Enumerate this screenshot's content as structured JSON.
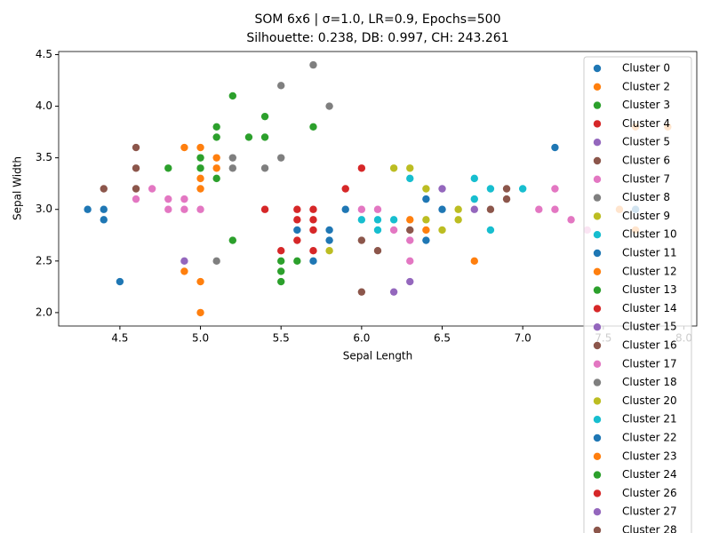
{
  "chart_data": {
    "type": "scatter",
    "title": "SOM 6x6 | σ=1.0, LR=0.9, Epochs=500",
    "subtitle": "Silhouette: 0.238, DB: 0.997, CH: 243.261",
    "x_label": "Sepal Length",
    "y_label": "Sepal Width",
    "xlim": [
      4.12,
      8.08
    ],
    "ylim": [
      1.87,
      4.53
    ],
    "xticks": [
      4.5,
      {
        "value": 5,
        "label": "5.0"
      },
      5.5,
      {
        "value": 6,
        "label": "6.0"
      },
      6.5,
      {
        "value": 7,
        "label": "7.0"
      },
      7.5,
      {
        "value": 8,
        "label": "8.0"
      }
    ],
    "yticks": [
      {
        "value": 2,
        "label": "2.0"
      },
      2.5,
      {
        "value": 3,
        "label": "3.0"
      },
      3.5,
      {
        "value": 4,
        "label": "4.0"
      },
      4.5
    ],
    "legend": "upper right",
    "series": [
      {
        "name": "Cluster 0",
        "color": "#1f77b4",
        "x": [
          4.3,
          4.4,
          4.4
        ],
        "y": [
          3.0,
          3.0,
          2.9
        ]
      },
      {
        "name": "Cluster 2",
        "color": "#ff7f0e",
        "x": [
          4.9,
          5.0,
          5.0,
          5.0,
          5.1,
          5.1
        ],
        "y": [
          3.6,
          3.6,
          3.3,
          3.2,
          3.5,
          3.4
        ]
      },
      {
        "name": "Cluster 3",
        "color": "#2ca02c",
        "x": [
          4.8,
          5.0,
          5.0,
          5.1,
          5.1,
          5.1,
          5.2,
          5.3,
          5.4,
          5.4,
          5.7
        ],
        "y": [
          3.4,
          3.5,
          3.4,
          3.8,
          3.7,
          3.3,
          4.1,
          3.7,
          3.9,
          3.7,
          3.8
        ]
      },
      {
        "name": "Cluster 4",
        "color": "#d62728",
        "x": [
          5.4,
          5.9,
          6.0
        ],
        "y": [
          3.0,
          3.2,
          3.4
        ]
      },
      {
        "name": "Cluster 5",
        "color": "#9467bd",
        "x": [
          4.9
        ],
        "y": [
          2.5
        ]
      },
      {
        "name": "Cluster 6",
        "color": "#8c564b",
        "x": [
          4.4,
          4.6,
          4.6,
          4.6
        ],
        "y": [
          3.2,
          3.6,
          3.4,
          3.2
        ]
      },
      {
        "name": "Cluster 7",
        "color": "#e377c2",
        "x": [
          4.6,
          4.7,
          4.8,
          4.8,
          4.9,
          4.9,
          5.0
        ],
        "y": [
          3.1,
          3.2,
          3.1,
          3.0,
          3.1,
          3.0,
          3.0
        ]
      },
      {
        "name": "Cluster 8",
        "color": "#7f7f7f",
        "x": [
          5.1,
          5.2,
          5.2,
          5.4
        ],
        "y": [
          2.5,
          3.5,
          3.4,
          3.4
        ]
      },
      {
        "name": "Cluster 9",
        "color": "#bcbd22",
        "x": [
          5.8
        ],
        "y": [
          2.6
        ]
      },
      {
        "name": "Cluster 10",
        "color": "#17becf",
        "x": [
          6.0,
          6.1,
          6.1,
          6.2
        ],
        "y": [
          2.9,
          2.9,
          2.8,
          2.9
        ]
      },
      {
        "name": "Cluster 11",
        "color": "#1f77b4",
        "x": [
          4.5,
          5.6,
          5.7,
          5.8,
          5.8
        ],
        "y": [
          2.3,
          2.8,
          2.5,
          2.7,
          2.8
        ]
      },
      {
        "name": "Cluster 12",
        "color": "#ff7f0e",
        "x": [
          4.9,
          5.0,
          5.0
        ],
        "y": [
          2.4,
          2.3,
          2.0
        ]
      },
      {
        "name": "Cluster 13",
        "color": "#2ca02c",
        "x": [
          5.2
        ],
        "y": [
          2.7
        ]
      },
      {
        "name": "Cluster 14",
        "color": "#d62728",
        "x": [
          5.5,
          5.6,
          5.6,
          5.6
        ],
        "y": [
          2.6,
          3.0,
          2.9,
          2.7
        ]
      },
      {
        "name": "Cluster 15",
        "color": "#9467bd",
        "x": [
          6.2,
          6.3
        ],
        "y": [
          2.2,
          2.3
        ]
      },
      {
        "name": "Cluster 16",
        "color": "#8c564b",
        "x": [
          6.0,
          6.0,
          6.1,
          6.3
        ],
        "y": [
          2.7,
          2.2,
          2.6,
          2.8
        ]
      },
      {
        "name": "Cluster 17",
        "color": "#e377c2",
        "x": [
          6.0,
          6.1,
          6.2,
          6.3,
          6.3,
          7.1,
          7.2,
          7.2,
          7.3,
          7.4
        ],
        "y": [
          3.0,
          3.0,
          2.8,
          2.7,
          2.5,
          3.0,
          3.2,
          3.0,
          2.9,
          2.8
        ]
      },
      {
        "name": "Cluster 18",
        "color": "#7f7f7f",
        "x": [
          5.5,
          5.5,
          5.7,
          5.8
        ],
        "y": [
          4.2,
          3.5,
          4.4,
          4.0
        ]
      },
      {
        "name": "Cluster 20",
        "color": "#bcbd22",
        "x": [
          6.2,
          6.3,
          6.4,
          6.4,
          6.5,
          6.6,
          6.6
        ],
        "y": [
          3.4,
          3.4,
          3.2,
          2.9,
          2.8,
          3.0,
          2.9
        ]
      },
      {
        "name": "Cluster 21",
        "color": "#17becf",
        "x": [
          6.3,
          6.7,
          6.7,
          6.8,
          6.8,
          7.0
        ],
        "y": [
          3.3,
          3.3,
          3.1,
          3.2,
          2.8,
          3.2
        ]
      },
      {
        "name": "Cluster 22",
        "color": "#1f77b4",
        "x": [
          5.9,
          6.4,
          6.4,
          6.5,
          7.2,
          7.7
        ],
        "y": [
          3.0,
          3.1,
          2.7,
          3.0,
          3.6,
          3.0
        ]
      },
      {
        "name": "Cluster 23",
        "color": "#ff7f0e",
        "x": [
          6.3,
          6.4,
          6.7,
          7.6,
          7.7,
          7.9,
          7.7
        ],
        "y": [
          2.9,
          2.8,
          2.5,
          3.0,
          3.8,
          3.8,
          2.8
        ]
      },
      {
        "name": "Cluster 24",
        "color": "#2ca02c",
        "x": [
          5.5,
          5.5,
          5.5,
          5.6
        ],
        "y": [
          2.5,
          2.4,
          2.3,
          2.5
        ]
      },
      {
        "name": "Cluster 26",
        "color": "#d62728",
        "x": [
          5.7,
          5.7,
          5.7,
          5.7
        ],
        "y": [
          3.0,
          2.9,
          2.8,
          2.6
        ]
      },
      {
        "name": "Cluster 27",
        "color": "#9467bd",
        "x": [
          6.5,
          6.7
        ],
        "y": [
          3.2,
          3.0
        ]
      },
      {
        "name": "Cluster 28",
        "color": "#8c564b",
        "x": [
          6.8,
          6.9,
          6.9
        ],
        "y": [
          3.0,
          3.1,
          3.2
        ]
      }
    ]
  }
}
